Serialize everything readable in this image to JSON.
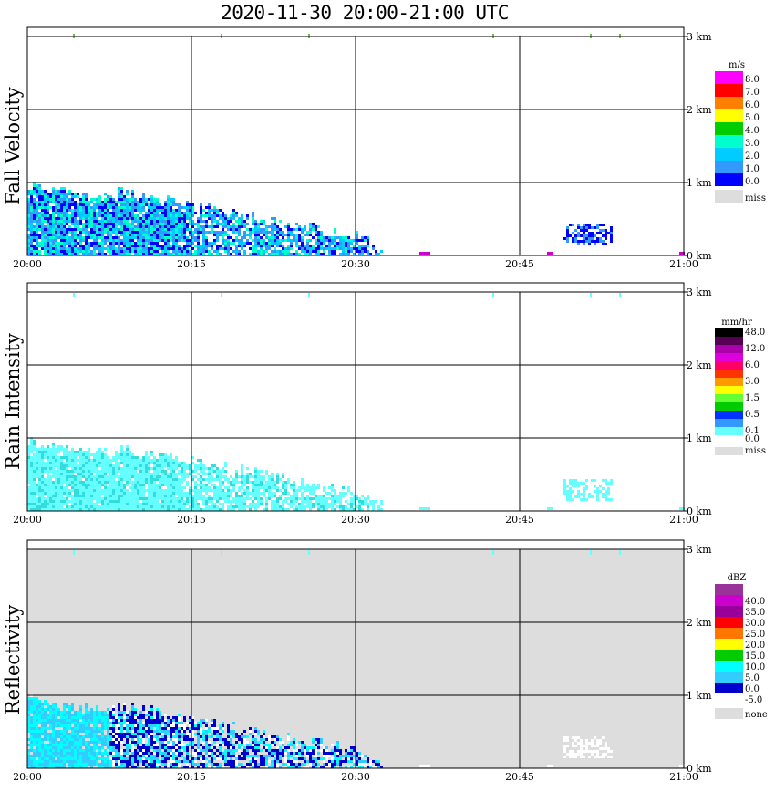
{
  "title": "2020-11-30   20:00-21:00 UTC",
  "chart_data": [
    {
      "type": "heatmap",
      "title": "Fall Velocity",
      "x_ticks": [
        "20:00",
        "20:15",
        "20:30",
        "20:45",
        "21:00"
      ],
      "y_ticks": [
        "0 km",
        "1 km",
        "2 km",
        "3 km"
      ],
      "xlim": [
        "20:00",
        "21:00"
      ],
      "ylim_km": [
        0,
        3.0
      ],
      "grid": true,
      "legend": {
        "unit": "m/s",
        "labels": [
          "8.0",
          "7.0",
          "6.0",
          "5.0",
          "4.0",
          "3.0",
          "2.0",
          "1.0",
          "0.0",
          "miss"
        ],
        "colors": [
          "#ff00ff",
          "#ff0000",
          "#ff8000",
          "#ffff00",
          "#00cc00",
          "#00ffcc",
          "#00ccff",
          "#3399ff",
          "#0000ff",
          "#dddddd"
        ]
      },
      "missing_background": false
    },
    {
      "type": "heatmap",
      "title": "Rain Intensity",
      "x_ticks": [
        "20:00",
        "20:15",
        "20:30",
        "20:45",
        "21:00"
      ],
      "y_ticks": [
        "0 km",
        "1 km",
        "2 km",
        "3 km"
      ],
      "xlim": [
        "20:00",
        "21:00"
      ],
      "ylim_km": [
        0,
        3.0
      ],
      "grid": true,
      "legend": {
        "unit": "mm/hr",
        "labels": [
          "48.0",
          "",
          "12.0",
          "",
          "6.0",
          "",
          "3.0",
          "",
          "1.5",
          "",
          "0.5",
          "",
          "0.1",
          "0.0",
          "miss"
        ],
        "colors": [
          "#000000",
          "#550055",
          "#aa00aa",
          "#dd00dd",
          "#ff0066",
          "#ff3300",
          "#ff9900",
          "#ffff00",
          "#66ff33",
          "#00cc00",
          "#0033ff",
          "#3399ff",
          "#66ffff",
          "#ffffff",
          "#dddddd"
        ]
      },
      "missing_background": false
    },
    {
      "type": "heatmap",
      "title": "Reflectivity",
      "x_ticks": [
        "20:00",
        "20:15",
        "20:30",
        "20:45",
        "21:00"
      ],
      "y_ticks": [
        "0 km",
        "1 km",
        "2 km",
        "3 km"
      ],
      "xlim": [
        "20:00",
        "21:00"
      ],
      "ylim_km": [
        0,
        3.0
      ],
      "grid": true,
      "legend": {
        "unit": "dBZ",
        "labels": [
          "",
          "40.0",
          "35.0",
          "30.0",
          "25.0",
          "20.0",
          "15.0",
          "10.0",
          "5.0",
          "0.0",
          "-5.0",
          "none"
        ],
        "colors": [
          "#993399",
          "#cc00cc",
          "#990099",
          "#ff0000",
          "#ff7700",
          "#ffff00",
          "#00cc00",
          "#00ffff",
          "#33ccff",
          "#0000cc",
          "#ffffff",
          "#dddddd"
        ]
      },
      "missing_background": true
    }
  ]
}
